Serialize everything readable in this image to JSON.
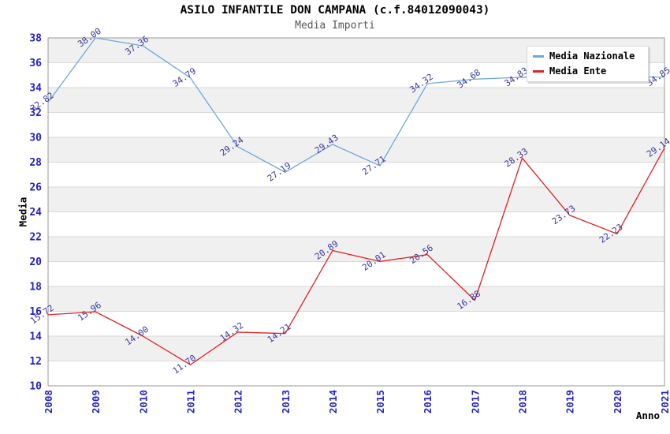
{
  "chart": {
    "title": "ASILO INFANTILE DON CAMPANA (c.f.84012090043)",
    "subtitle": "Media Importi",
    "ylabel": "Media",
    "xlabel": "Anno",
    "colors": {
      "nazionale_line": "#6fa8dc",
      "ente_line": "#e62020",
      "axis_tick_label": "#2222cc",
      "value_label": "#383899",
      "band": "#f0f0f0",
      "grid": "#d9d9d9",
      "plot_border": "#999999",
      "title": "#000000",
      "subtitle": "#555555"
    }
  },
  "chart_data": {
    "type": "line",
    "title": "ASILO INFANTILE DON CAMPANA (c.f.84012090043)",
    "subtitle": "Media Importi",
    "xlabel": "Anno",
    "ylabel": "Media",
    "categories": [
      "2008",
      "2009",
      "2010",
      "2011",
      "2012",
      "2013",
      "2014",
      "2015",
      "2016",
      "2017",
      "2018",
      "2019",
      "2020",
      "2021"
    ],
    "series": [
      {
        "name": "Media Nazionale",
        "color": "#6fa8dc",
        "values": [
          32.82,
          38.0,
          37.36,
          34.79,
          29.24,
          27.19,
          29.43,
          27.71,
          34.32,
          34.68,
          34.83,
          34.84,
          34.84,
          34.85
        ],
        "labels": [
          "32.82",
          "38.00",
          "37.36",
          "34.79",
          "29.24",
          "27.19",
          "29.43",
          "27.71",
          "34.32",
          "34.68",
          "34.83",
          null,
          null,
          "34.85"
        ]
      },
      {
        "name": "Media Ente",
        "color": "#e62020",
        "values": [
          15.72,
          15.96,
          14.0,
          11.7,
          14.32,
          14.21,
          20.89,
          20.01,
          20.56,
          16.88,
          28.33,
          23.73,
          22.23,
          29.14
        ],
        "labels": [
          "15.72",
          "15.96",
          "14.00",
          "11.70",
          "14.32",
          "14.21",
          "20.89",
          "20.01",
          "20.56",
          "16.88",
          "28.33",
          "23.73",
          "22.23",
          "29.14"
        ]
      }
    ],
    "ylim": [
      10,
      38
    ],
    "ytick_step": 2,
    "grid": "horizontal",
    "background_bands": "alternating-gray",
    "legend_position": "top-right"
  }
}
